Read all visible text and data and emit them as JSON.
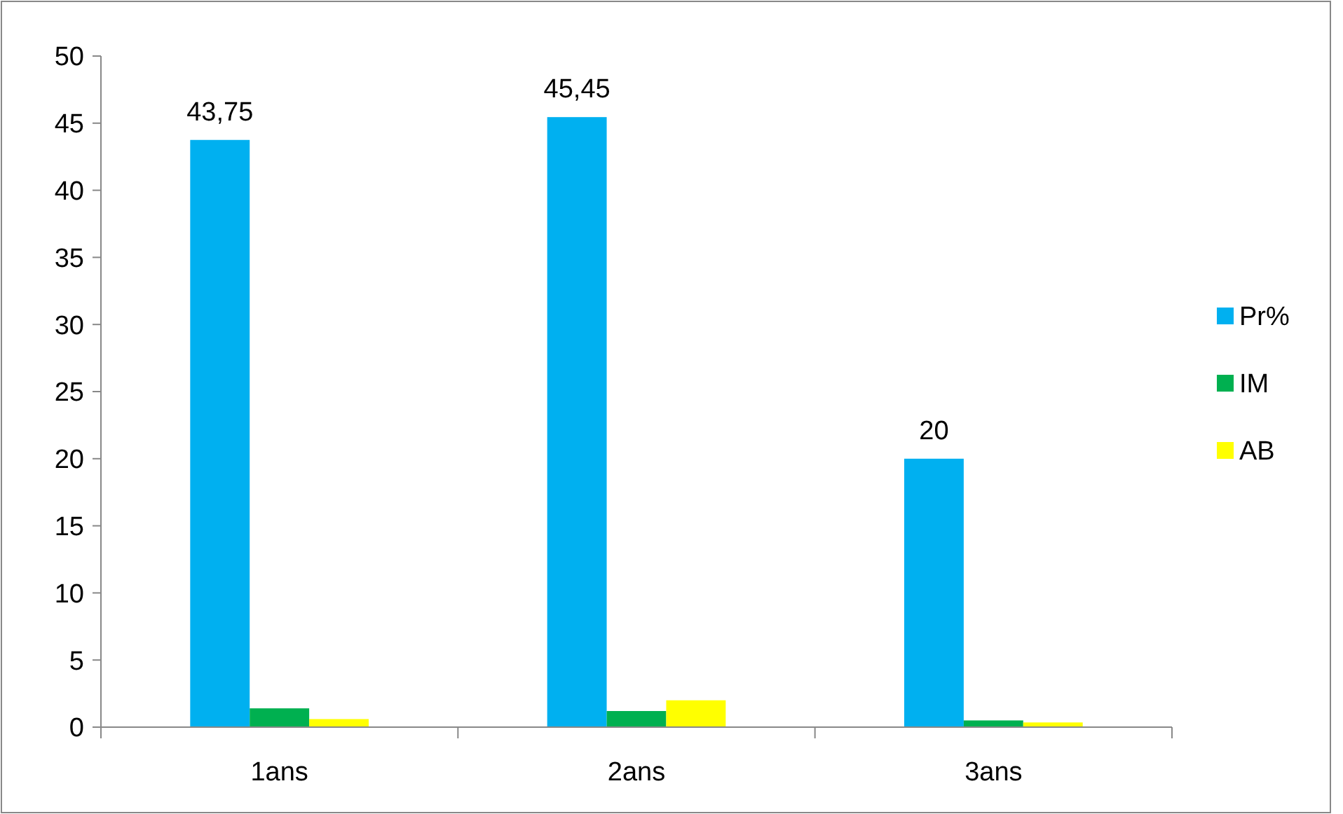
{
  "chart_data": {
    "type": "bar",
    "categories": [
      "1ans",
      "2ans",
      "3ans"
    ],
    "series": [
      {
        "name": "Pr%",
        "color": "#00b0f0",
        "values": [
          43.75,
          45.45,
          20
        ],
        "value_labels": [
          "43,75",
          "45,45",
          "20"
        ]
      },
      {
        "name": "IM",
        "color": "#00b050",
        "values": [
          1.4,
          1.2,
          0.5
        ]
      },
      {
        "name": "AB",
        "color": "#ffff00",
        "values": [
          0.6,
          2.0,
          0.35
        ]
      }
    ],
    "ylim": [
      0,
      50
    ],
    "yticks": [
      0,
      5,
      10,
      15,
      20,
      25,
      30,
      35,
      40,
      45,
      50
    ],
    "legend": "right",
    "grid": false
  }
}
